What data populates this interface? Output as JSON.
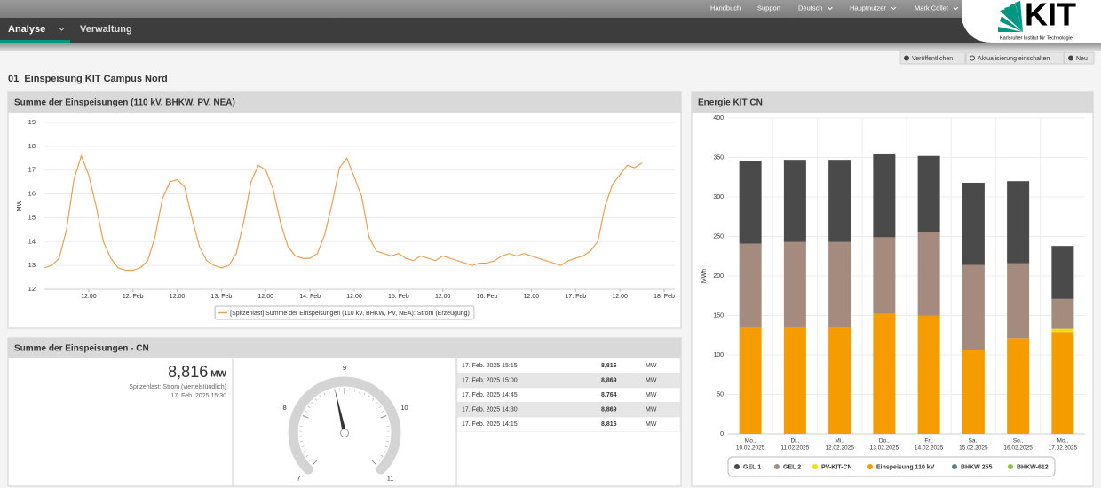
{
  "header": {
    "links": [
      "Handbuch",
      "Support",
      "Deutsch",
      "Hauptnutzer",
      "Mark Collet"
    ],
    "logo": "KIT",
    "logo_subtitle": "Karlsruher Institut für Technologie"
  },
  "tabs": [
    "Analyse",
    "Verwaltung"
  ],
  "toolbar": [
    "Veröffentlichen",
    "Aktualisierung einschalten",
    "Neu"
  ],
  "page_title": "01_Einspeisung KIT Campus Nord",
  "chart_data": [
    {
      "type": "line",
      "title": "Summe der Einspeisungen (110 kV, BHKW, PV, NEA)",
      "y_label": "MW",
      "ylim": [
        12,
        19
      ],
      "yticks": [
        12,
        13,
        14,
        15,
        16,
        17,
        18,
        19
      ],
      "grid": true,
      "categories": [
        null,
        null,
        null,
        null,
        null,
        null,
        "12:00",
        null,
        null,
        null,
        null,
        null,
        "12. Feb",
        null,
        null,
        null,
        null,
        null,
        "12:00",
        null,
        null,
        null,
        null,
        null,
        "13. Feb",
        null,
        null,
        null,
        null,
        null,
        "12:00",
        null,
        null,
        null,
        null,
        null,
        "14. Feb",
        null,
        null,
        null,
        null,
        null,
        "12:00",
        null,
        null,
        null,
        null,
        null,
        "15. Feb",
        null,
        null,
        null,
        null,
        null,
        "12:00",
        null,
        null,
        null,
        null,
        null,
        "16. Feb",
        null,
        null,
        null,
        null,
        null,
        "12:00",
        null,
        null,
        null,
        null,
        null,
        "17. Feb",
        null,
        null,
        null,
        null,
        null,
        "12:00",
        null,
        null,
        null,
        null,
        null,
        "18. Feb"
      ],
      "series": [
        {
          "name": "[Spitzenlast] Summe der Einspeisungen (110 kV, BHKW, PV, NEA): Strom (Erzeugung)",
          "color": "#e8a050",
          "values": [
            12.9,
            13.0,
            13.3,
            14.5,
            16.6,
            17.6,
            16.8,
            15.5,
            14.0,
            13.3,
            12.9,
            12.8,
            12.8,
            12.9,
            13.2,
            14.2,
            15.8,
            16.5,
            16.6,
            16.3,
            15.0,
            13.8,
            13.2,
            13.0,
            12.9,
            13.0,
            13.5,
            14.8,
            16.5,
            17.2,
            17.0,
            16.2,
            14.8,
            13.8,
            13.4,
            13.3,
            13.3,
            13.5,
            14.3,
            15.6,
            17.1,
            17.5,
            16.7,
            15.9,
            14.2,
            13.6,
            13.5,
            13.4,
            13.5,
            13.3,
            13.2,
            13.4,
            13.3,
            13.2,
            13.4,
            13.3,
            13.2,
            13.1,
            13.0,
            13.1,
            13.1,
            13.2,
            13.4,
            13.5,
            13.4,
            13.5,
            13.4,
            13.3,
            13.2,
            13.1,
            13.0,
            13.2,
            13.3,
            13.4,
            13.6,
            14.0,
            15.5,
            16.4,
            16.8,
            17.2,
            17.1,
            17.3,
            null,
            null,
            null
          ]
        }
      ],
      "legend": "bottom"
    },
    {
      "type": "stacked_bar",
      "title": "Energie KIT CN",
      "y_label": "MWh",
      "ylim": [
        0,
        400
      ],
      "yticks": [
        0,
        50,
        100,
        150,
        200,
        250,
        300,
        350,
        400
      ],
      "grid": true,
      "categories": [
        [
          "Mo.,",
          "10.02.2025"
        ],
        [
          "Di.,",
          "11.02.2025"
        ],
        [
          "Mi.,",
          "12.02.2025"
        ],
        [
          "Do.,",
          "13.02.2025"
        ],
        [
          "Fr.,",
          "14.02.2025"
        ],
        [
          "Sa.,",
          "15.02.2025"
        ],
        [
          "So.,",
          "16.02.2025"
        ],
        [
          "Mo.,",
          "17.02.2025"
        ]
      ],
      "series": [
        {
          "name": "GEL 1",
          "color": "#4a4a4a",
          "values": [
            105,
            104,
            104,
            105,
            96,
            104,
            104,
            67
          ]
        },
        {
          "name": "GEL 2",
          "color": "#a58b7e",
          "values": [
            106,
            107,
            108,
            97,
            106,
            108,
            95,
            38
          ]
        },
        {
          "name": "PV-KIT-CN",
          "color": "#f2e000",
          "values": [
            0,
            0,
            0,
            0,
            0,
            0,
            0,
            4
          ]
        },
        {
          "name": "Einspeisung 110 kV",
          "color": "#f59c00",
          "values": [
            135,
            136,
            135,
            152,
            150,
            106,
            121,
            129
          ]
        },
        {
          "name": "BHKW 255",
          "color": "#5f7d8f",
          "values": [
            0,
            0,
            0,
            0,
            0,
            0,
            0,
            0
          ]
        },
        {
          "name": "BHKW-612",
          "color": "#8cc63e",
          "values": [
            0,
            0,
            0,
            0,
            0,
            0,
            0,
            0
          ]
        }
      ],
      "legend": "bottom"
    },
    {
      "type": "gauge",
      "value": 8.816,
      "ylim": [
        7,
        11
      ],
      "yticks": [
        7,
        8,
        9,
        10,
        11
      ]
    }
  ],
  "kpi": {
    "title": "Summe der Einspeisungen - CN",
    "value": "8,816",
    "unit": "MW",
    "label": "Spitzenlast: Strom (viertelstündlich)",
    "timestamp": "17. Feb. 2025 15:30"
  },
  "table": {
    "rows": [
      [
        "17. Feb. 2025 15:15",
        "8,816",
        "MW"
      ],
      [
        "17. Feb. 2025 15:00",
        "8,869",
        "MW"
      ],
      [
        "17. Feb. 2025 14:45",
        "8,764",
        "MW"
      ],
      [
        "17. Feb. 2025 14:30",
        "8,869",
        "MW"
      ],
      [
        "17. Feb. 2025 14:15",
        "8,816",
        "MW"
      ]
    ]
  }
}
